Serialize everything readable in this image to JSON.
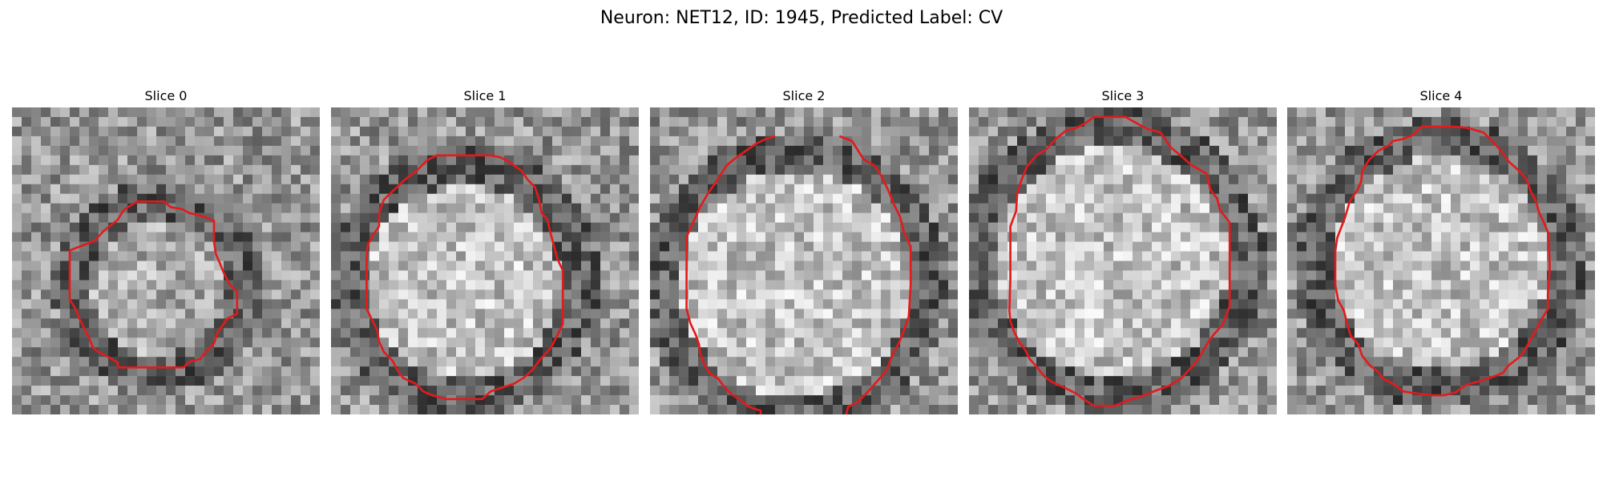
{
  "figure": {
    "title": "Neuron: NET12, ID: 1945, Predicted Label: CV"
  },
  "panels": [
    {
      "title": "Slice 0",
      "seed": 11,
      "contour": [
        [
          13,
          9.8
        ],
        [
          11.6,
          10.7
        ],
        [
          11,
          11.7
        ],
        [
          9.5,
          12.9
        ],
        [
          8.6,
          13.9
        ],
        [
          6,
          14.9
        ],
        [
          6,
          20
        ],
        [
          6.6,
          21
        ],
        [
          7,
          22
        ],
        [
          7.5,
          23
        ],
        [
          8,
          24
        ],
        [
          8.4,
          25
        ],
        [
          9,
          25.5
        ],
        [
          10,
          26
        ],
        [
          11,
          26.6
        ],
        [
          11,
          27.1
        ],
        [
          17.8,
          27.1
        ],
        [
          18.5,
          26.5
        ],
        [
          19.6,
          26.2
        ],
        [
          20.2,
          25.4
        ],
        [
          21,
          24.6
        ],
        [
          21.4,
          23.4
        ],
        [
          22.4,
          22
        ],
        [
          23.4,
          21.5
        ],
        [
          23.4,
          19.2
        ],
        [
          22.6,
          18.4
        ],
        [
          22,
          17.2
        ],
        [
          21.6,
          16.2
        ],
        [
          21.2,
          15.3
        ],
        [
          21,
          14
        ],
        [
          21,
          11.8
        ],
        [
          19.7,
          11.3
        ],
        [
          18.4,
          11
        ],
        [
          17.7,
          10.6
        ],
        [
          16.5,
          10.4
        ],
        [
          15.8,
          9.8
        ]
      ]
    },
    {
      "title": "Slice 1",
      "seed": 23,
      "contour": [
        [
          11,
          5
        ],
        [
          10,
          5.5
        ],
        [
          9,
          6.5
        ],
        [
          7.6,
          7.6
        ],
        [
          5.5,
          9.6
        ],
        [
          5,
          11
        ],
        [
          5,
          12.4
        ],
        [
          4.3,
          13.4
        ],
        [
          3.8,
          14.4
        ],
        [
          3.7,
          15.9
        ],
        [
          3.7,
          21
        ],
        [
          4.3,
          22.2
        ],
        [
          4.8,
          23.2
        ],
        [
          5,
          24.4
        ],
        [
          5.5,
          25.5
        ],
        [
          6.4,
          26.4
        ],
        [
          6.9,
          27.4
        ],
        [
          7.5,
          28.2
        ],
        [
          8.8,
          28.8
        ],
        [
          9.6,
          29.6
        ],
        [
          10.5,
          30
        ],
        [
          12,
          30.4
        ],
        [
          15.7,
          30.4
        ],
        [
          16.6,
          29.6
        ],
        [
          17.8,
          29.2
        ],
        [
          19,
          28.8
        ],
        [
          20,
          28.2
        ],
        [
          20.9,
          27.4
        ],
        [
          21.8,
          26.2
        ],
        [
          22.9,
          25
        ],
        [
          24.1,
          22.6
        ],
        [
          24.1,
          17
        ],
        [
          23.5,
          15.7
        ],
        [
          23.2,
          14.5
        ],
        [
          22.8,
          13
        ],
        [
          22.5,
          11.7
        ],
        [
          21.9,
          11
        ],
        [
          21.6,
          9.5
        ],
        [
          21.2,
          8.3
        ],
        [
          20.5,
          7.6
        ],
        [
          19.8,
          6.6
        ],
        [
          18.4,
          5.6
        ],
        [
          17.6,
          5.2
        ],
        [
          16.6,
          5
        ]
      ]
    },
    {
      "title": "Slice 2",
      "seed": 37,
      "contour": [
        [
          13,
          3
        ],
        [
          12,
          3.3
        ],
        [
          11,
          3.8
        ],
        [
          10,
          4.5
        ],
        [
          9,
          5.2
        ],
        [
          8,
          6
        ],
        [
          6.9,
          7.7
        ],
        [
          6,
          9
        ],
        [
          5.2,
          10.4
        ],
        [
          4.3,
          12.4
        ],
        [
          3.8,
          13.5
        ],
        [
          3.8,
          16.2
        ],
        [
          3.8,
          21
        ],
        [
          4.2,
          22.5
        ],
        [
          4.8,
          23.8
        ],
        [
          5.1,
          24.7
        ],
        [
          5.2,
          25.6
        ],
        [
          5.7,
          26.9
        ],
        [
          6.2,
          27.7
        ],
        [
          7.1,
          28.3
        ],
        [
          7.7,
          29.1
        ],
        [
          8.6,
          30
        ],
        [
          9.4,
          30.5
        ],
        [
          10.1,
          31.1
        ],
        [
          10.8,
          31.4
        ],
        [
          11.5,
          31.6
        ],
        [
          11.5,
          32.0
        ],
        null,
        [
          20.4,
          32.0
        ],
        [
          20.6,
          31.2
        ],
        [
          21.6,
          30.7
        ],
        [
          22.4,
          29.9
        ],
        [
          23.3,
          28.9
        ],
        [
          24,
          28.1
        ],
        [
          24.6,
          27.4
        ],
        [
          25.2,
          25.8
        ],
        [
          25.9,
          24.5
        ],
        [
          26.3,
          23.5
        ],
        [
          26.9,
          21.8
        ],
        [
          27.1,
          18.5
        ],
        [
          27.1,
          14.5
        ],
        [
          26.4,
          13
        ],
        [
          26,
          11.4
        ],
        [
          25.4,
          10.2
        ],
        [
          24.8,
          8.7
        ],
        [
          24.2,
          7.4
        ],
        [
          23.4,
          6.1
        ],
        [
          22.2,
          5.4
        ],
        [
          21.7,
          4.6
        ],
        [
          21,
          3.5
        ],
        [
          19.7,
          3
        ]
      ]
    },
    {
      "title": "Slice 3",
      "seed": 49,
      "contour": [
        [
          13,
          1
        ],
        [
          12,
          1.7
        ],
        [
          11,
          2.2
        ],
        [
          10.1,
          2.4
        ],
        [
          9.1,
          3.2
        ],
        [
          8,
          4.4
        ],
        [
          7,
          5
        ],
        [
          6,
          6.2
        ],
        [
          5.4,
          7.7
        ],
        [
          5,
          9.1
        ],
        [
          4.9,
          10.8
        ],
        [
          4.3,
          12.4
        ],
        [
          4.3,
          17.8
        ],
        [
          4.2,
          21.2
        ],
        [
          4.3,
          22.3
        ],
        [
          4.7,
          23.4
        ],
        [
          5.2,
          24.4
        ],
        [
          5.8,
          25.2
        ],
        [
          6.3,
          26.2
        ],
        [
          7.1,
          27.1
        ],
        [
          7.8,
          28
        ],
        [
          8.6,
          28.6
        ],
        [
          9.9,
          29.2
        ],
        [
          11.1,
          29.8
        ],
        [
          11.9,
          30.4
        ],
        [
          13,
          31.1
        ],
        [
          15.1,
          31.1
        ],
        [
          16.9,
          30.4
        ],
        [
          18,
          30.1
        ],
        [
          19.2,
          29.6
        ],
        [
          20.8,
          29
        ],
        [
          22.1,
          28.2
        ],
        [
          23.3,
          26.9
        ],
        [
          24.1,
          25.8
        ],
        [
          24.9,
          24.4
        ],
        [
          25.5,
          23.6
        ],
        [
          26.4,
          22.6
        ],
        [
          27.1,
          20.7
        ],
        [
          27.1,
          17.5
        ],
        [
          27.1,
          12
        ],
        [
          26.1,
          10.7
        ],
        [
          25.8,
          9.5
        ],
        [
          25.1,
          8.6
        ],
        [
          24.7,
          6.9
        ],
        [
          23.1,
          6
        ],
        [
          22,
          5
        ],
        [
          21,
          4.2
        ],
        [
          19.9,
          2.6
        ],
        [
          18.7,
          2.3
        ],
        [
          17.7,
          1.8
        ],
        [
          16.3,
          1
        ],
        [
          15.3,
          1
        ]
      ]
    },
    {
      "title": "Slice 4",
      "seed": 61,
      "contour": [
        [
          14,
          2
        ],
        [
          13,
          2.9
        ],
        [
          12,
          3.3
        ],
        [
          11,
          3.5
        ],
        [
          10.5,
          4
        ],
        [
          9.5,
          4.5
        ],
        [
          8.5,
          5.5
        ],
        [
          7.8,
          6.6
        ],
        [
          7.7,
          7.7
        ],
        [
          7.3,
          8.6
        ],
        [
          6.5,
          9.8
        ],
        [
          6,
          11.5
        ],
        [
          5.2,
          13.6
        ],
        [
          5,
          15
        ],
        [
          5,
          18.5
        ],
        [
          5.3,
          20.1
        ],
        [
          5.9,
          21.2
        ],
        [
          6.3,
          22.8
        ],
        [
          6.6,
          23.8
        ],
        [
          7.4,
          24.7
        ],
        [
          7.8,
          25.9
        ],
        [
          8.6,
          26.9
        ],
        [
          9.4,
          27.5
        ],
        [
          10,
          28.3
        ],
        [
          11,
          28.8
        ],
        [
          12.1,
          29.6
        ],
        [
          13.4,
          29.8
        ],
        [
          15,
          30
        ],
        [
          16.3,
          30
        ],
        [
          17.5,
          29.7
        ],
        [
          18.6,
          28.9
        ],
        [
          19.8,
          28.6
        ],
        [
          21.3,
          28.1
        ],
        [
          22.4,
          27.7
        ],
        [
          23,
          26.9
        ],
        [
          24.3,
          25.9
        ],
        [
          24.8,
          25.1
        ],
        [
          25.6,
          23.7
        ],
        [
          26.5,
          22
        ],
        [
          27.1,
          21
        ],
        [
          27.1,
          19.4
        ],
        [
          27.3,
          17
        ],
        [
          27.2,
          13.2
        ],
        [
          26.6,
          11.8
        ],
        [
          26.2,
          11
        ],
        [
          25.9,
          9.9
        ],
        [
          25.3,
          8.7
        ],
        [
          24.9,
          7.5
        ],
        [
          24.1,
          6.6
        ],
        [
          23.1,
          5.7
        ],
        [
          22.3,
          4.6
        ],
        [
          21.4,
          3.6
        ],
        [
          20.4,
          2.6
        ],
        [
          18.6,
          2.1
        ],
        [
          17,
          2
        ]
      ]
    }
  ]
}
